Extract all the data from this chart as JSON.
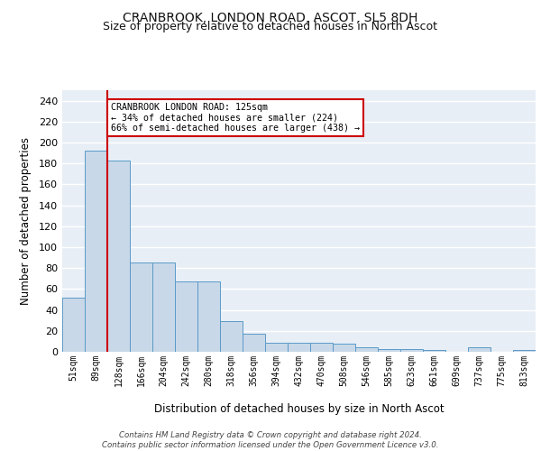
{
  "title": "CRANBROOK, LONDON ROAD, ASCOT, SL5 8DH",
  "subtitle": "Size of property relative to detached houses in North Ascot",
  "xlabel": "Distribution of detached houses by size in North Ascot",
  "ylabel": "Number of detached properties",
  "categories": [
    "51sqm",
    "89sqm",
    "128sqm",
    "166sqm",
    "204sqm",
    "242sqm",
    "280sqm",
    "318sqm",
    "356sqm",
    "394sqm",
    "432sqm",
    "470sqm",
    "508sqm",
    "546sqm",
    "585sqm",
    "623sqm",
    "661sqm",
    "699sqm",
    "737sqm",
    "775sqm",
    "813sqm"
  ],
  "values": [
    52,
    192,
    183,
    85,
    85,
    67,
    67,
    29,
    17,
    9,
    9,
    9,
    8,
    4,
    3,
    3,
    2,
    0,
    4,
    0,
    2
  ],
  "bar_color": "#c8d8e8",
  "bar_edge_color": "#5a9ac8",
  "vline_x_index": 2,
  "vline_color": "#cc0000",
  "annotation_text": "CRANBROOK LONDON ROAD: 125sqm\n← 34% of detached houses are smaller (224)\n66% of semi-detached houses are larger (438) →",
  "annotation_box_color": "#ffffff",
  "annotation_box_edge": "#cc0000",
  "ylim": [
    0,
    250
  ],
  "yticks": [
    0,
    20,
    40,
    60,
    80,
    100,
    120,
    140,
    160,
    180,
    200,
    220,
    240
  ],
  "bg_color": "#e8eef6",
  "grid_color": "#ffffff",
  "footer": "Contains HM Land Registry data © Crown copyright and database right 2024.\nContains public sector information licensed under the Open Government Licence v3.0."
}
